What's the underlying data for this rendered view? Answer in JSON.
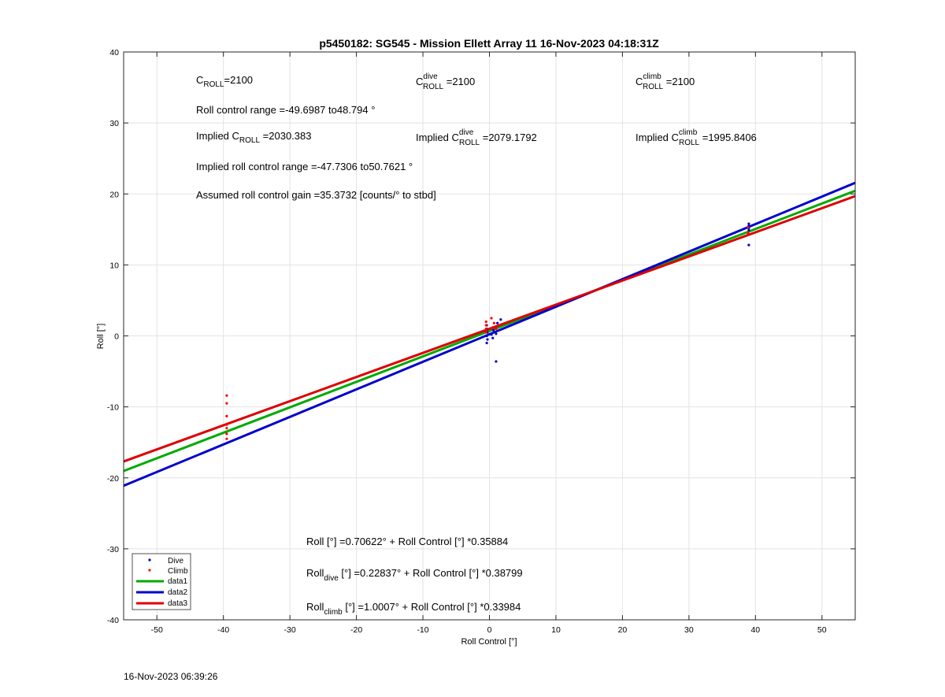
{
  "chart_data": {
    "type": "scatter",
    "title": "p5450182: SG545 - Mission Ellett Array 11 16-Nov-2023 04:18:31Z",
    "xlabel": "Roll Control [°]",
    "ylabel": "Roll [°]",
    "xlim": [
      -55,
      55
    ],
    "ylim": [
      -40,
      40
    ],
    "xticks": [
      -50,
      -40,
      -30,
      -20,
      -10,
      0,
      10,
      20,
      30,
      40,
      50
    ],
    "yticks": [
      -40,
      -30,
      -20,
      -10,
      0,
      10,
      20,
      30,
      40
    ],
    "grid": true,
    "legend_position": "bottom-left",
    "series": [
      {
        "name": "Dive",
        "kind": "points",
        "color": "#0000cc",
        "points": [
          [
            39.0,
            15.8
          ],
          [
            39.0,
            15.5
          ],
          [
            39.0,
            15.2
          ],
          [
            39.0,
            14.9
          ],
          [
            39.0,
            12.8
          ],
          [
            -0.4,
            1.5
          ],
          [
            -0.4,
            1.0
          ],
          [
            -0.3,
            0.5
          ],
          [
            -0.4,
            0.0
          ],
          [
            -0.3,
            -0.5
          ],
          [
            -0.4,
            -1.0
          ],
          [
            0.3,
            0.2
          ],
          [
            0.5,
            -0.3
          ],
          [
            0.6,
            0.8
          ],
          [
            1.0,
            0.3
          ],
          [
            1.2,
            1.8
          ],
          [
            1.7,
            2.3
          ],
          [
            1.0,
            -3.6
          ]
        ]
      },
      {
        "name": "Climb",
        "kind": "points",
        "color": "#ff0000",
        "points": [
          [
            -39.5,
            -8.4
          ],
          [
            -39.5,
            -9.5
          ],
          [
            -39.5,
            -11.3
          ],
          [
            -39.5,
            -12.5
          ],
          [
            -39.5,
            -13.0
          ],
          [
            -39.5,
            -13.8
          ],
          [
            -39.5,
            -14.5
          ],
          [
            -0.5,
            2.0
          ],
          [
            -0.5,
            1.5
          ],
          [
            -0.5,
            1.0
          ],
          [
            -0.5,
            0.5
          ],
          [
            0.3,
            2.5
          ],
          [
            0.5,
            1.2
          ],
          [
            0.7,
            1.8
          ],
          [
            1.0,
            1.0
          ],
          [
            38.9,
            15.3
          ],
          [
            38.9,
            14.5
          ]
        ]
      },
      {
        "name": "data1",
        "kind": "line",
        "color": "#00aa00",
        "intercept": 0.70622,
        "slope": 0.35884
      },
      {
        "name": "data2",
        "kind": "line",
        "color": "#0000cc",
        "intercept": 0.22837,
        "slope": 0.38799
      },
      {
        "name": "data3",
        "kind": "line",
        "color": "#dd0000",
        "intercept": 1.0007,
        "slope": 0.33984
      }
    ],
    "annotations": {
      "c_roll": {
        "base": "C",
        "sub": "ROLL",
        "rest": "=2100"
      },
      "c_roll_dive": {
        "base": "C",
        "sup": "dive",
        "sub": "ROLL",
        "rest": " =2100"
      },
      "c_roll_climb": {
        "base": "C",
        "sup": "climb",
        "sub": "ROLL",
        "rest": " =2100"
      },
      "roll_control_range": "Roll control range =-49.6987 to48.794 °",
      "implied_c_roll": {
        "pre": "Implied C",
        "sub": "ROLL",
        "rest": " =2030.383"
      },
      "implied_c_roll_dive": {
        "pre": "Implied C",
        "sup": "dive",
        "sub": "ROLL",
        "rest": " =2079.1792"
      },
      "implied_c_roll_climb": {
        "pre": "Implied C",
        "sup": "climb",
        "sub": "ROLL",
        "rest": " =1995.8406"
      },
      "implied_range": "Implied roll control range =-47.7306 to50.7621 °",
      "gain": "Assumed roll control gain =35.3732 [counts/° to stbd]",
      "fit_all": "Roll [°] =0.70622° + Roll Control [°] *0.35884",
      "fit_dive": {
        "pre": "Roll",
        "sub": "dive",
        "rest": " [°] =0.22837° + Roll Control [°] *0.38799"
      },
      "fit_climb": {
        "pre": "Roll",
        "sub": "climb",
        "rest": " [°] =1.0007° + Roll Control [°] *0.33984"
      }
    }
  },
  "timestamp": "16-Nov-2023 06:39:26"
}
